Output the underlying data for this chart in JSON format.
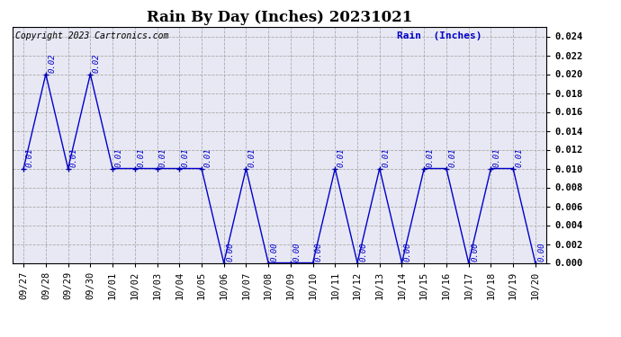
{
  "title": "Rain By Day (Inches) 20231021",
  "copyright_text": "Copyright 2023 Cartronics.com",
  "legend_label": "Rain  (Inches)",
  "dates": [
    "09/27",
    "09/28",
    "09/29",
    "09/30",
    "10/01",
    "10/02",
    "10/03",
    "10/04",
    "10/05",
    "10/06",
    "10/07",
    "10/08",
    "10/09",
    "10/10",
    "10/11",
    "10/12",
    "10/13",
    "10/14",
    "10/15",
    "10/16",
    "10/17",
    "10/18",
    "10/19",
    "10/20"
  ],
  "values": [
    0.01,
    0.02,
    0.01,
    0.02,
    0.01,
    0.01,
    0.01,
    0.01,
    0.01,
    0.0,
    0.01,
    0.0,
    0.0,
    0.0,
    0.01,
    0.0,
    0.01,
    0.0,
    0.01,
    0.01,
    0.0,
    0.01,
    0.01,
    0.0
  ],
  "line_color": "#0000cc",
  "marker_color": "#0000aa",
  "label_color": "#0000cc",
  "grid_color": "#aaaaaa",
  "background_color": "#ffffff",
  "plot_bg_color": "#e8e8f4",
  "ylim": [
    0.0,
    0.025
  ],
  "yticks": [
    0.0,
    0.002,
    0.004,
    0.006,
    0.008,
    0.01,
    0.012,
    0.014,
    0.016,
    0.018,
    0.02,
    0.022,
    0.024
  ],
  "title_fontsize": 12,
  "label_fontsize": 6.5,
  "tick_fontsize": 7.5,
  "copyright_fontsize": 7,
  "legend_fontsize": 8
}
